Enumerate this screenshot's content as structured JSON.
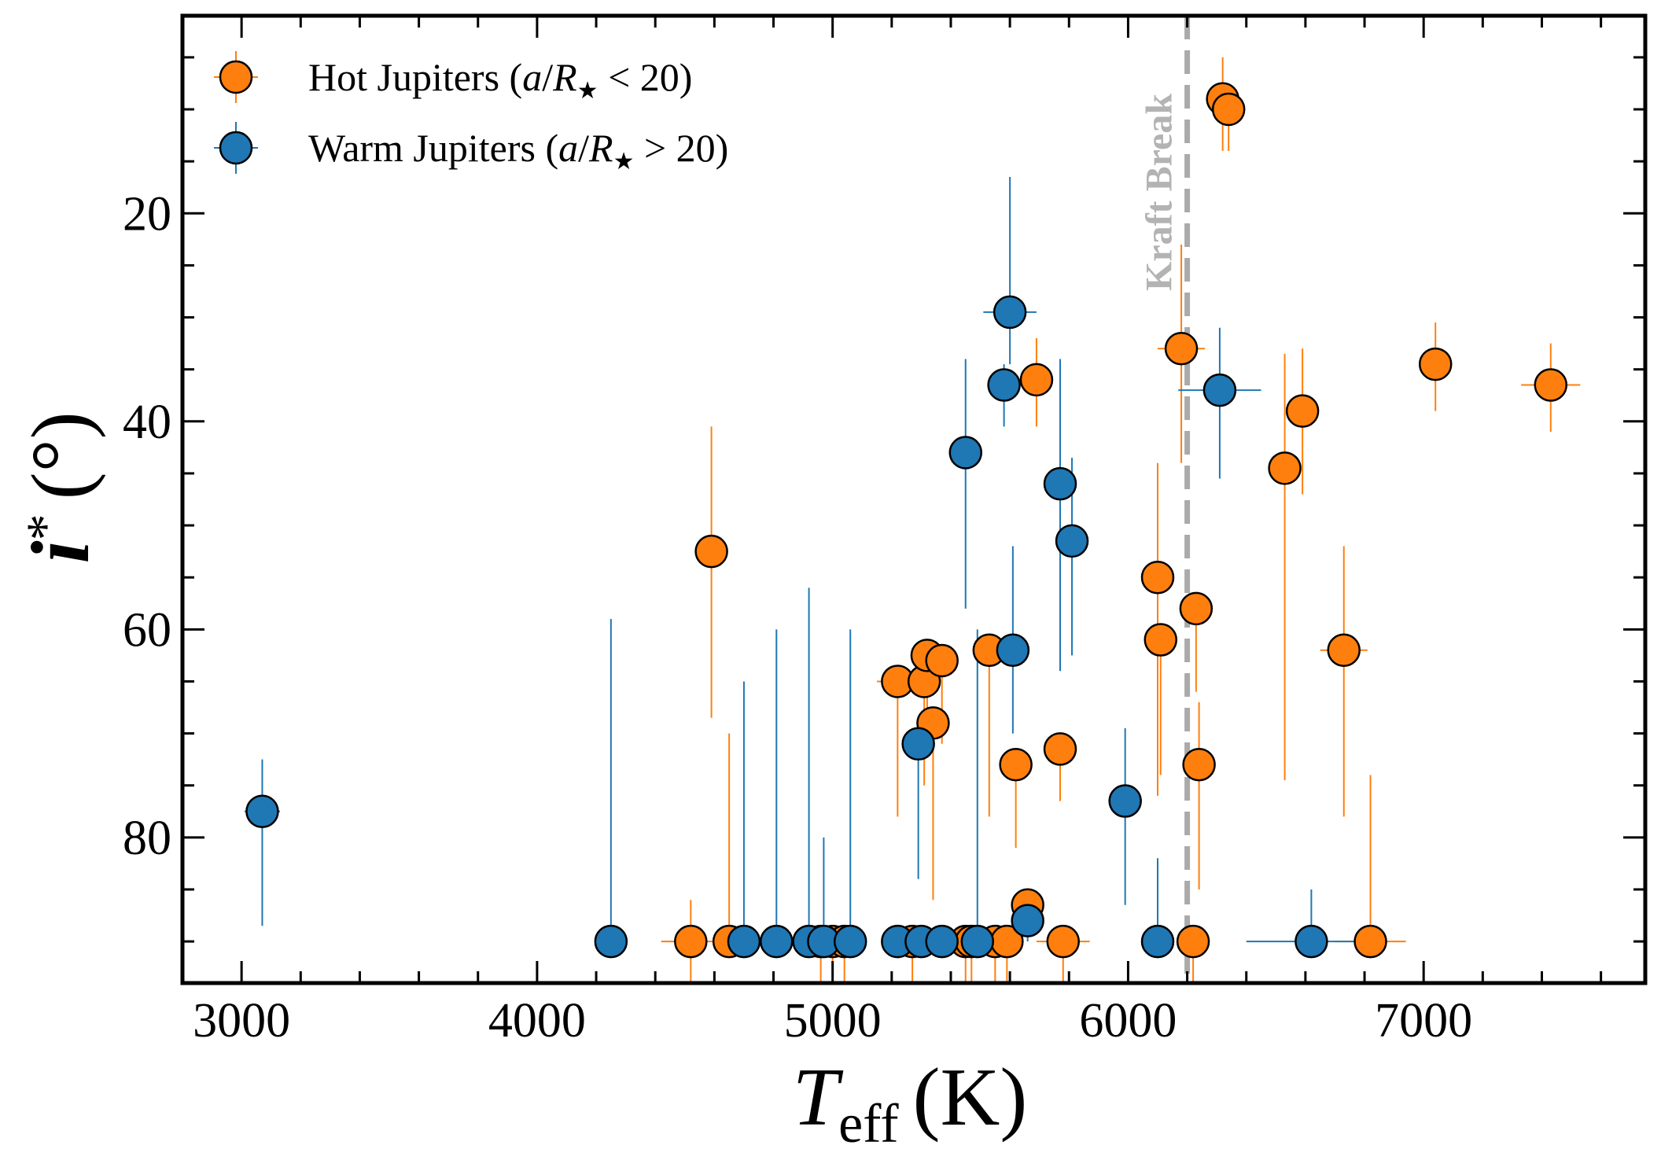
{
  "chart_data": {
    "type": "scatter",
    "xlabel": "T_eff (K)",
    "xlabel_main": "T",
    "xlabel_sub": "eff",
    "xlabel_unit": "(K)",
    "ylabel": "i* (°)",
    "ylabel_main": "i",
    "ylabel_sup": "*",
    "ylabel_unit": "(°)",
    "xlim": [
      2800,
      7750
    ],
    "ylim": [
      94,
      1
    ],
    "y_inverted": true,
    "x_ticks": [
      3000,
      4000,
      5000,
      6000,
      7000
    ],
    "y_ticks": [
      20,
      40,
      60,
      80
    ],
    "grid": false,
    "legend_position": "top-left",
    "annotation": {
      "text": "Kraft Break",
      "x": 6200,
      "color": "#aaaaaa",
      "style": "dashed vertical line"
    },
    "series": [
      {
        "name": "Hot Jupiters (a/R★ < 20)",
        "legend_plain": "Hot Jupiters (",
        "legend_a": "a",
        "legend_R": "R",
        "legend_star": "★",
        "legend_op": " < 20)",
        "color": "#ff7f0e",
        "points": [
          [
            4520,
            90,
            100,
            4,
            28
          ],
          [
            4590,
            52.5,
            0,
            12,
            16
          ],
          [
            4650,
            90,
            0,
            20,
            0
          ],
          [
            4960,
            90,
            0,
            0,
            26
          ],
          [
            5000,
            90,
            0,
            0,
            12
          ],
          [
            5040,
            90,
            0,
            0,
            15
          ],
          [
            5220,
            65,
            70,
            0,
            13
          ],
          [
            5270,
            90,
            0,
            0,
            21
          ],
          [
            5310,
            65,
            0,
            0,
            10
          ],
          [
            5320,
            62.5,
            0,
            0,
            8
          ],
          [
            5340,
            69,
            0,
            0,
            17
          ],
          [
            5370,
            63,
            0,
            0,
            8
          ],
          [
            5450,
            90,
            0,
            0,
            15
          ],
          [
            5470,
            90,
            0,
            0,
            18
          ],
          [
            5530,
            62,
            0,
            0,
            16
          ],
          [
            5550,
            90,
            0,
            0,
            11
          ],
          [
            5590,
            90,
            0,
            0,
            13
          ],
          [
            5620,
            73,
            0,
            0,
            8
          ],
          [
            5660,
            86.5,
            0,
            0,
            3
          ],
          [
            5690,
            36,
            0,
            4,
            4.5
          ],
          [
            5770,
            71.5,
            0,
            0,
            5
          ],
          [
            5780,
            90,
            90,
            0,
            25
          ],
          [
            6100,
            55,
            0,
            11,
            21
          ],
          [
            6110,
            61,
            0,
            0,
            13
          ],
          [
            6180,
            33,
            80,
            10,
            11
          ],
          [
            6220,
            90,
            0,
            0,
            4
          ],
          [
            6230,
            58,
            0,
            0,
            8
          ],
          [
            6240,
            73,
            0,
            6,
            12
          ],
          [
            6320,
            9,
            0,
            4,
            5
          ],
          [
            6340,
            10,
            0,
            0,
            4
          ],
          [
            6530,
            44.5,
            0,
            11,
            30
          ],
          [
            6590,
            39,
            0,
            6,
            8
          ],
          [
            6730,
            62,
            80,
            10,
            16
          ],
          [
            6820,
            90,
            120,
            16,
            0
          ],
          [
            7040,
            34.5,
            0,
            4,
            4.5
          ],
          [
            7430,
            36.5,
            100,
            4,
            4.5
          ]
        ]
      },
      {
        "name": "Warm Jupiters (a/R★ > 20)",
        "legend_plain": "Warm Jupiters (",
        "legend_a": "a",
        "legend_R": "R",
        "legend_star": "★",
        "legend_op": " > 20)",
        "color": "#1f77b4",
        "points": [
          [
            3070,
            77.5,
            60,
            5,
            11
          ],
          [
            4250,
            90,
            0,
            31,
            0
          ],
          [
            4700,
            90,
            0,
            25,
            0
          ],
          [
            4810,
            90,
            0,
            30,
            0
          ],
          [
            4920,
            90,
            0,
            34,
            0
          ],
          [
            4970,
            90,
            0,
            10,
            0
          ],
          [
            5060,
            90,
            0,
            30,
            0
          ],
          [
            5220,
            90,
            0,
            0,
            0
          ],
          [
            5290,
            71,
            50,
            0,
            13
          ],
          [
            5300,
            90,
            0,
            0,
            0
          ],
          [
            5370,
            90,
            0,
            0,
            0
          ],
          [
            5450,
            43,
            0,
            9,
            15
          ],
          [
            5490,
            90,
            0,
            30,
            0
          ],
          [
            5580,
            36.5,
            0,
            2,
            4
          ],
          [
            5600,
            29.5,
            90,
            13,
            5
          ],
          [
            5610,
            62,
            0,
            10,
            8
          ],
          [
            5660,
            88,
            0,
            0,
            2
          ],
          [
            5770,
            46,
            0,
            12,
            18
          ],
          [
            5810,
            51.5,
            50,
            8,
            11
          ],
          [
            5990,
            76.5,
            0,
            7,
            10
          ],
          [
            6100,
            90,
            0,
            8,
            0
          ],
          [
            6310,
            37,
            140,
            6,
            8.5
          ],
          [
            6620,
            90,
            220,
            5,
            0
          ]
        ]
      }
    ]
  }
}
